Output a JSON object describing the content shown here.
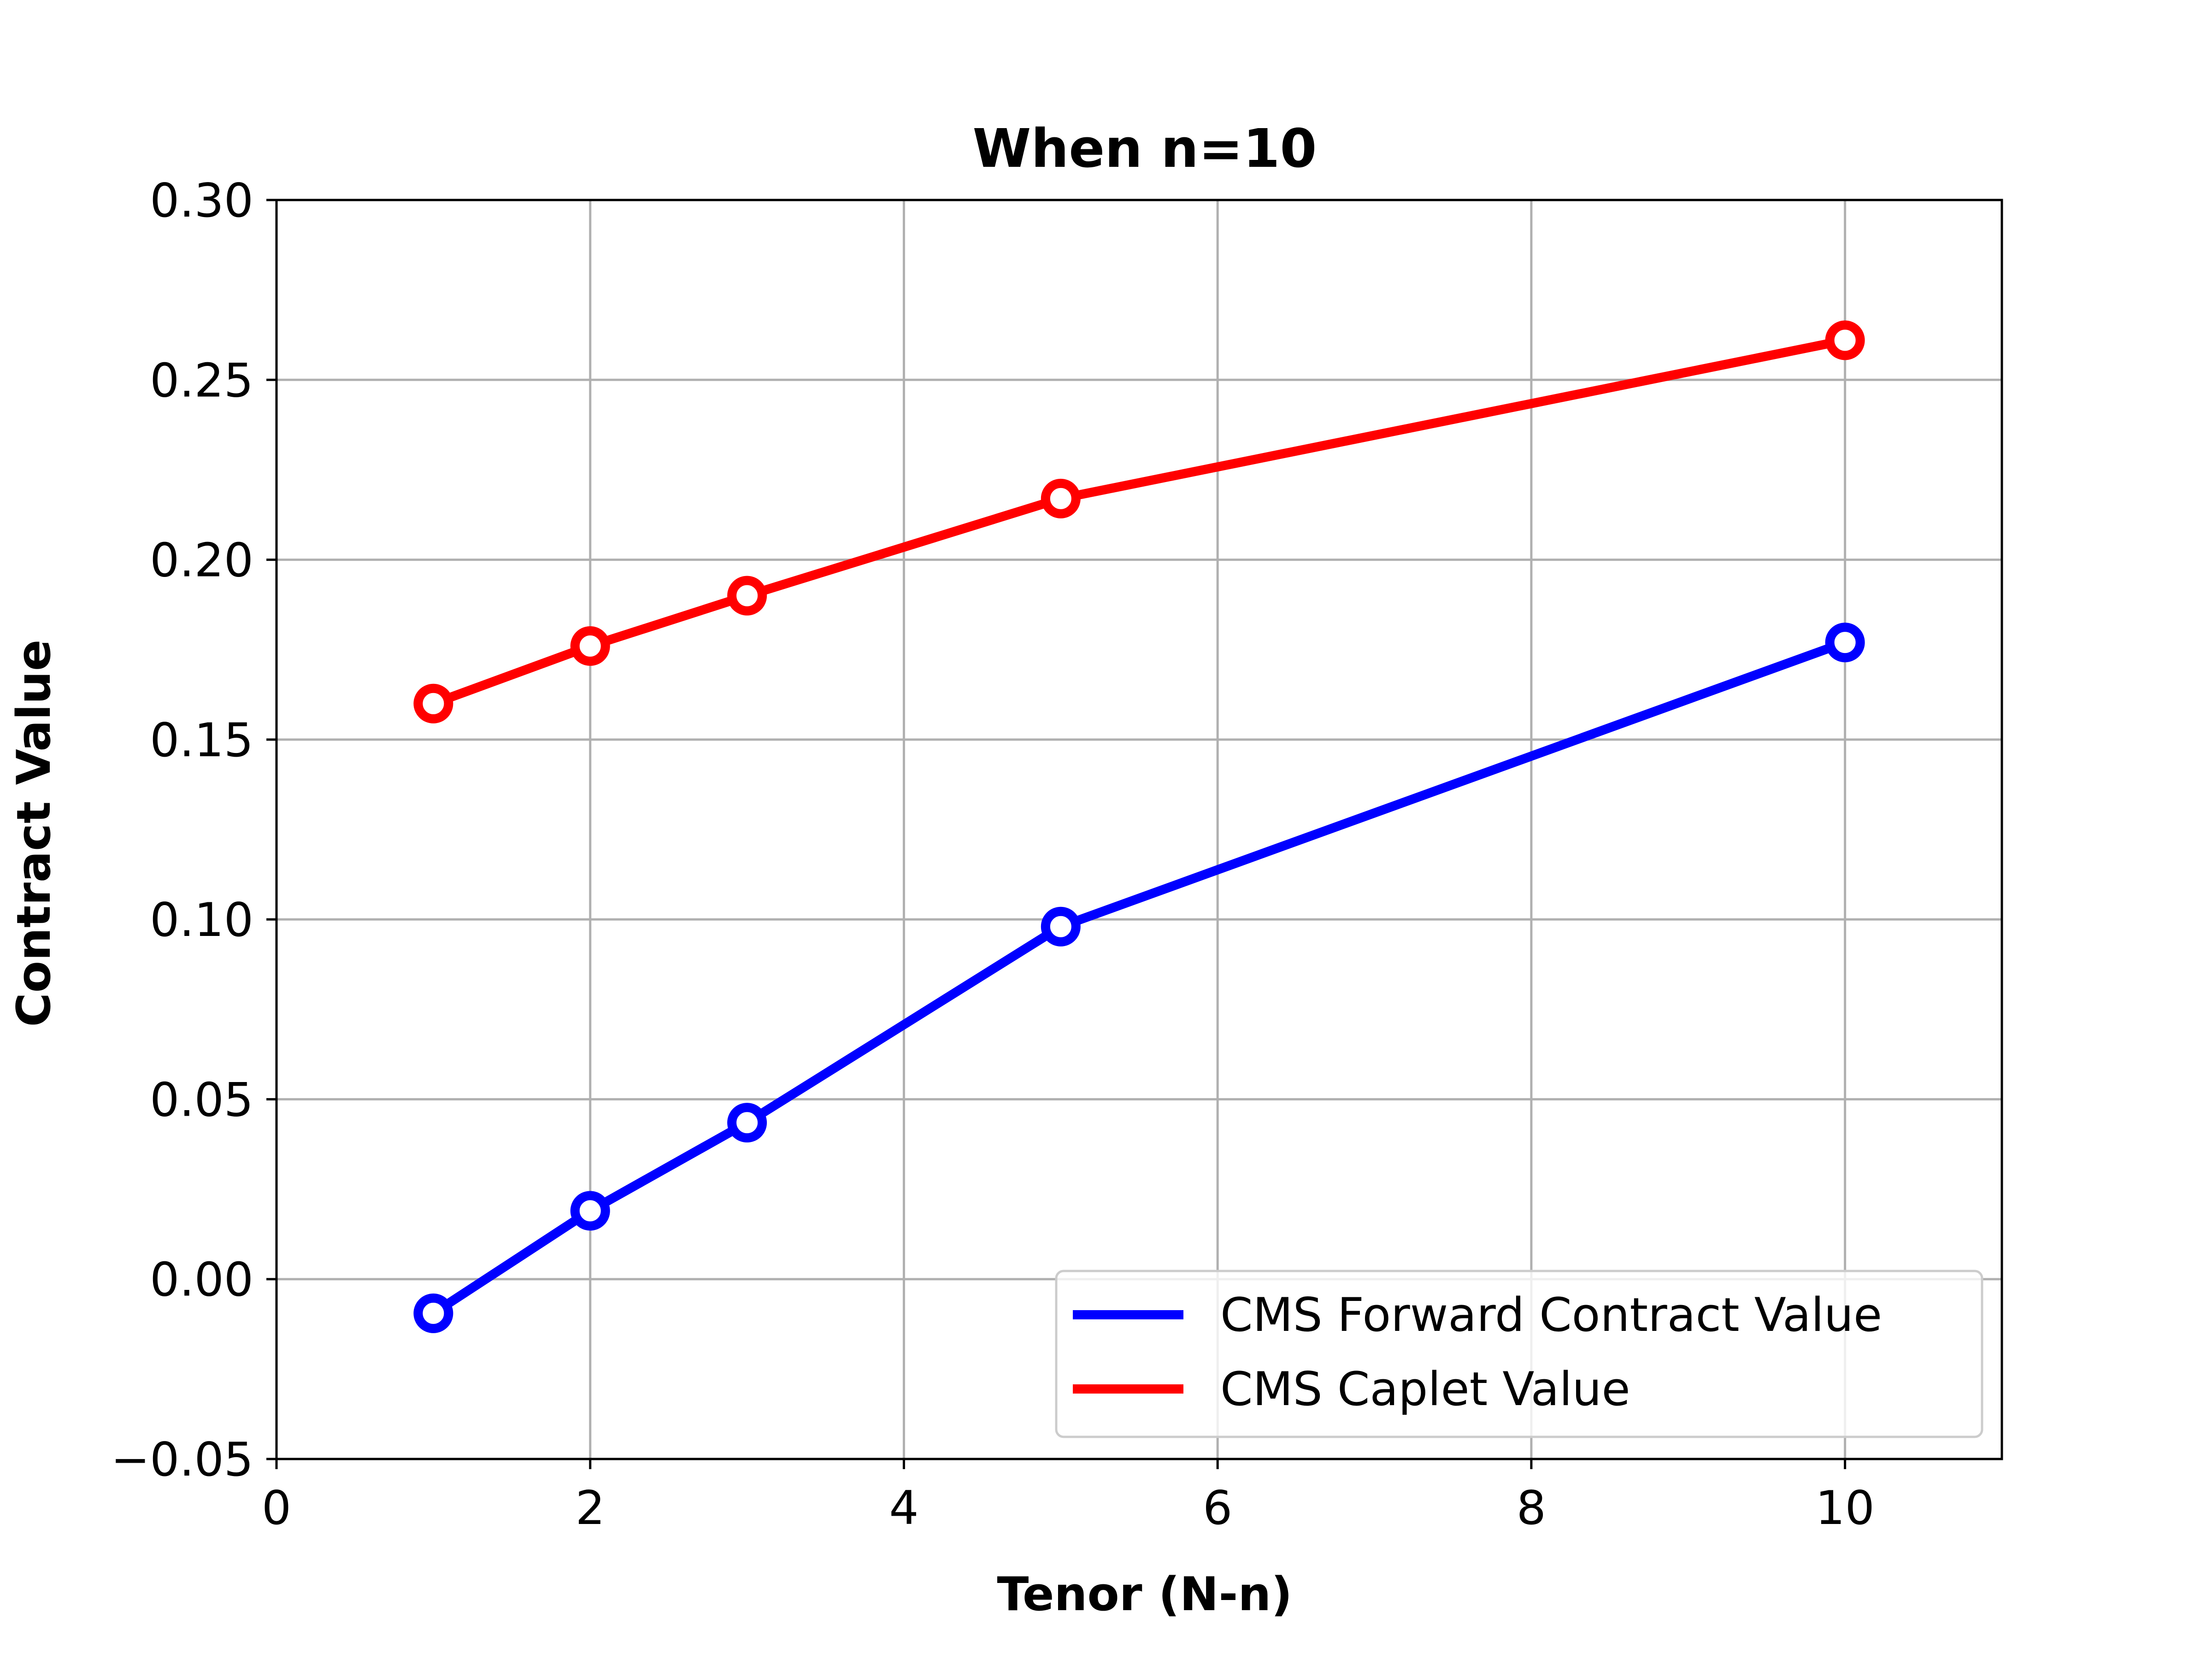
{
  "chart_data": {
    "type": "line",
    "title": "When n=10",
    "xlabel": "Tenor (N-n)",
    "ylabel": "Contract Value",
    "xlim": [
      0,
      11
    ],
    "ylim": [
      -0.05,
      0.3
    ],
    "xticks": [
      0,
      2,
      4,
      6,
      8,
      10
    ],
    "yticks": [
      -0.05,
      0.0,
      0.05,
      0.1,
      0.15,
      0.2,
      0.25,
      0.3
    ],
    "xtick_labels": [
      "0",
      "2",
      "4",
      "6",
      "8",
      "10"
    ],
    "ytick_labels": [
      "−0.05",
      "0.00",
      "0.05",
      "0.10",
      "0.15",
      "0.20",
      "0.25",
      "0.30"
    ],
    "grid": true,
    "legend_position": "lower-right",
    "x": [
      1,
      2,
      3,
      5,
      10
    ],
    "series": [
      {
        "name": "CMS Forward Contract Value",
        "color": "#0000ff",
        "marker": "open-circle",
        "values": [
          -0.0095,
          0.019,
          0.0435,
          0.098,
          0.177
        ]
      },
      {
        "name": "CMS Caplet Value",
        "color": "#ff0000",
        "marker": "open-circle",
        "values": [
          0.16,
          0.176,
          0.19,
          0.217,
          0.261
        ]
      }
    ]
  }
}
